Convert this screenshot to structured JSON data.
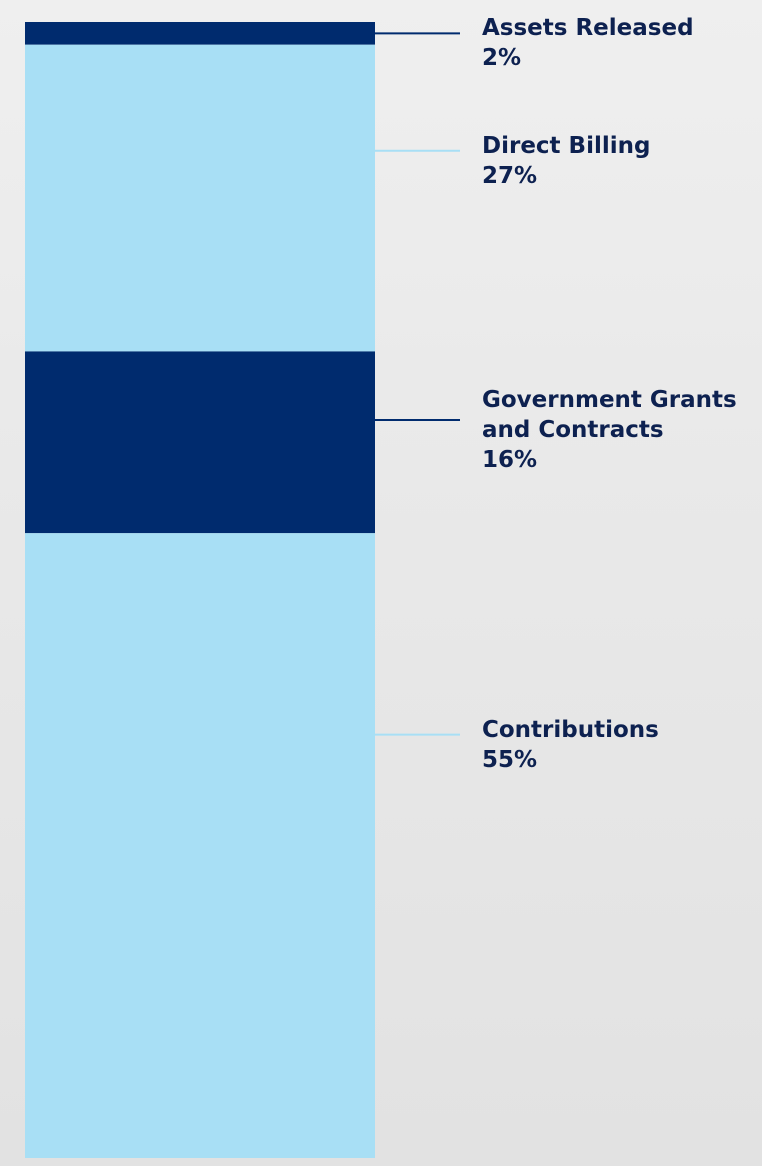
{
  "chart_data": {
    "type": "stacked-column",
    "series": [
      {
        "name": "Assets Released",
        "color": "#002b6e",
        "values": [
          2
        ],
        "value_labels": [
          "2%"
        ]
      },
      {
        "name": "Direct Billing",
        "color": "#a8dff5",
        "values": [
          27
        ],
        "value_labels": [
          "27%"
        ]
      },
      {
        "name": "Government Grants and Contracts",
        "color": "#002b6e",
        "values": [
          16
        ],
        "value_labels": [
          "16%"
        ]
      },
      {
        "name": "Contributions",
        "color": "#a8dff5",
        "values": [
          55
        ],
        "value_labels": [
          "55%"
        ]
      }
    ]
  }
}
